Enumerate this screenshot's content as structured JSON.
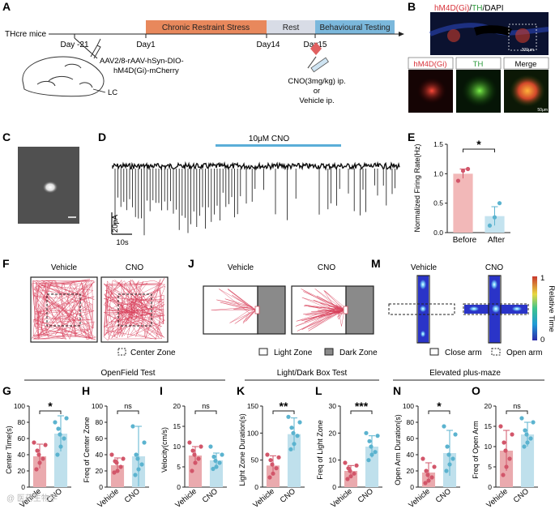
{
  "panel_letters": {
    "A": "A",
    "B": "B",
    "C": "C",
    "D": "D",
    "E": "E",
    "F": "F",
    "J": "J",
    "M": "M",
    "G": "G",
    "H": "H",
    "I": "I",
    "K": "K",
    "L": "L",
    "N": "N",
    "O": "O"
  },
  "timeline": {
    "mouse_line": "THcre mice",
    "phase_stress": "Chronic Restraint Stress",
    "phase_rest": "Rest",
    "phase_behav": "Behavioural Testing",
    "days": [
      "Day -21",
      "Day1",
      "Day14",
      "Day15"
    ],
    "virus_lines": [
      "AAV2/8-rAAV-hSyn-DIO-",
      "hM4D(Gi)-mCherry"
    ],
    "region": "LC",
    "drug_lines": [
      "CNO(3mg/kg) ip.",
      "or",
      "Vehicle ip."
    ]
  },
  "histology": {
    "title_red": "hM4D(Gi)",
    "title_sep1": "/",
    "title_green": "TH",
    "title_rest": "/DAPI",
    "scale_top": "200μm",
    "scale_bottom": "50μm",
    "labels": [
      "hM4D(Gi)",
      "TH",
      "Merge"
    ]
  },
  "ephys": {
    "drug": "10μM CNO",
    "scale_y": "20pA",
    "scale_x": "10s"
  },
  "panel_e": {
    "chart_data": {
      "type": "bar",
      "title": "",
      "ylabel": "Normalized Firing Rate(Hz)",
      "categories": [
        "Before",
        "After"
      ],
      "values": [
        1.0,
        0.28
      ],
      "errors": [
        0.08,
        0.16
      ],
      "points": [
        [
          0.88,
          1.05,
          1.08
        ],
        [
          0.12,
          0.26,
          0.5
        ]
      ],
      "ylim": [
        0.0,
        1.5
      ],
      "yticks": [
        "0.0",
        "0.5",
        "1.0",
        "1.5"
      ],
      "significance": "*"
    }
  },
  "maze_f": {
    "vehicle": "Vehicle",
    "cno": "CNO",
    "legend": "Center Zone"
  },
  "maze_j": {
    "vehicle": "Vehicle",
    "cno": "CNO",
    "legend_light": "Light Zone",
    "legend_dark": "Dark Zone"
  },
  "maze_m": {
    "vehicle": "Vehicle",
    "cno": "CNO",
    "legend_close": "Close arm",
    "legend_open": "Open arm",
    "colorbar_label": "Relative Time",
    "colorbar_max": "1",
    "colorbar_min": "0"
  },
  "groups": {
    "of": "OpenField Test",
    "ld": "Light/Dark Box Test",
    "epm": "Elevated plus-maze"
  },
  "colors": {
    "vehicle": "#e59aa3",
    "cno": "#8dc8dd",
    "vehicle_dot": "#d2566a",
    "cno_dot": "#5bb3cf",
    "timeline_stress": "#e8885c",
    "timeline_behav": "#7bb8dc",
    "ephys_bar": "#5aaed8"
  },
  "watermark": "@ 医药生物学",
  "bar_panels": [
    {
      "key": "G",
      "chart_data": {
        "type": "bar",
        "ylabel": "Center Time(s)",
        "categories": [
          "Vehicle",
          "CNO"
        ],
        "values": [
          38,
          66
        ],
        "errors": [
          15,
          22
        ],
        "ylim": [
          0,
          100
        ],
        "yticks": [
          "0",
          "20",
          "40",
          "60",
          "80",
          "100"
        ],
        "significance": "*",
        "points": [
          [
            22,
            30,
            35,
            40,
            45,
            52,
            55
          ],
          [
            40,
            50,
            60,
            65,
            72,
            85,
            80
          ]
        ]
      }
    },
    {
      "key": "H",
      "chart_data": {
        "type": "bar",
        "ylabel": "Freq of Center Zone",
        "categories": [
          "Vehicle",
          "CNO"
        ],
        "values": [
          27,
          38
        ],
        "errors": [
          9,
          37
        ],
        "ylim": [
          0,
          100
        ],
        "yticks": [
          "0",
          "20",
          "40",
          "60",
          "80",
          "100"
        ],
        "significance": "ns",
        "points": [
          [
            18,
            20,
            25,
            30,
            32,
            35,
            40
          ],
          [
            15,
            22,
            28,
            35,
            40,
            55,
            75
          ]
        ]
      }
    },
    {
      "key": "I",
      "chart_data": {
        "type": "bar",
        "ylabel": "Velocity(cm/s)",
        "categories": [
          "Vehicle",
          "CNO"
        ],
        "values": [
          7.8,
          6.6
        ],
        "errors": [
          2.2,
          1.8
        ],
        "ylim": [
          0,
          20
        ],
        "yticks": [
          "0",
          "5",
          "10",
          "15",
          "20"
        ],
        "significance": "ns",
        "points": [
          [
            4,
            6,
            7,
            8,
            9,
            10,
            11
          ],
          [
            4.5,
            5,
            6,
            6.5,
            7.5,
            8,
            10
          ]
        ]
      }
    },
    {
      "key": "K",
      "chart_data": {
        "type": "bar",
        "ylabel": "Light Zone Duration(s)",
        "categories": [
          "Vehicle",
          "CNO"
        ],
        "values": [
          40,
          98
        ],
        "errors": [
          18,
          30
        ],
        "ylim": [
          0,
          150
        ],
        "yticks": [
          "0",
          "50",
          "100",
          "150"
        ],
        "significance": "**",
        "points": [
          [
            18,
            25,
            35,
            42,
            50,
            55,
            60
          ],
          [
            70,
            80,
            95,
            100,
            110,
            120,
            130
          ]
        ]
      }
    },
    {
      "key": "L",
      "chart_data": {
        "type": "bar",
        "ylabel": "Freq of Light Zone",
        "categories": [
          "Vehicle",
          "CNO"
        ],
        "values": [
          6,
          15
        ],
        "errors": [
          2,
          4
        ],
        "ylim": [
          0,
          30
        ],
        "yticks": [
          "0",
          "10",
          "20",
          "30"
        ],
        "significance": "***",
        "points": [
          [
            3,
            4,
            5,
            6,
            7,
            8,
            9
          ],
          [
            10,
            12,
            13,
            15,
            17,
            19,
            20
          ]
        ]
      }
    },
    {
      "key": "N",
      "chart_data": {
        "type": "bar",
        "ylabel": "Open Arm Duration(s)",
        "categories": [
          "Vehicle",
          "CNO"
        ],
        "values": [
          18,
          42
        ],
        "errors": [
          12,
          28
        ],
        "ylim": [
          0,
          100
        ],
        "yticks": [
          "0",
          "20",
          "40",
          "60",
          "80",
          "100"
        ],
        "significance": "*",
        "points": [
          [
            5,
            8,
            12,
            15,
            20,
            25,
            35
          ],
          [
            20,
            28,
            35,
            40,
            50,
            65,
            75
          ]
        ]
      }
    },
    {
      "key": "O",
      "chart_data": {
        "type": "bar",
        "ylabel": "Freq of Open Arm",
        "categories": [
          "Vehicle",
          "CNO"
        ],
        "values": [
          9,
          13
        ],
        "errors": [
          5,
          3
        ],
        "ylim": [
          0,
          20
        ],
        "yticks": [
          "0",
          "5",
          "10",
          "15",
          "20"
        ],
        "significance": "ns",
        "points": [
          [
            3,
            5,
            7,
            9,
            11,
            13,
            15
          ],
          [
            10,
            11,
            12,
            13,
            14,
            16,
            17
          ]
        ]
      }
    }
  ]
}
